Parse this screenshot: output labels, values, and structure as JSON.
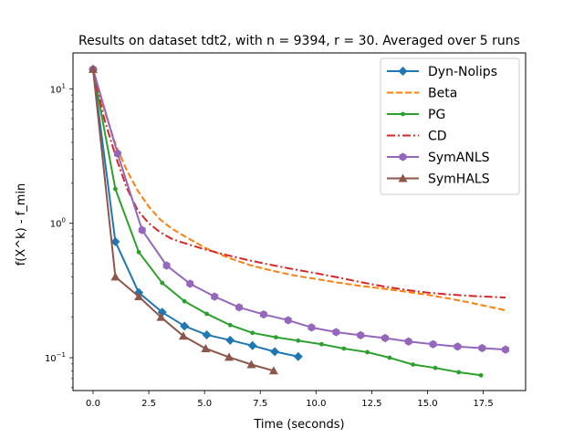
{
  "chart_data": {
    "type": "line",
    "title": "Results on dataset tdt2, with n = 9394, r = 30. Averaged over 5 runs",
    "xlabel": "Time (seconds)",
    "ylabel": "f(X^k) - f_min",
    "xlim": [
      -0.9,
      19.4
    ],
    "ylim": [
      0.057,
      18.5
    ],
    "yscale": "log",
    "grid": false,
    "legend_position": "top-right",
    "x_ticks": [
      {
        "value": 0,
        "label": "0.0"
      },
      {
        "value": 2.5,
        "label": "2.5"
      },
      {
        "value": 5,
        "label": "5.0"
      },
      {
        "value": 7.5,
        "label": "7.5"
      },
      {
        "value": 10,
        "label": "10.0"
      },
      {
        "value": 12.5,
        "label": "12.5"
      },
      {
        "value": 15,
        "label": "15.0"
      },
      {
        "value": 17.5,
        "label": "17.5"
      }
    ],
    "y_ticks": [
      {
        "value": 0.1,
        "label": "10",
        "exp": "−1"
      },
      {
        "value": 1,
        "label": "10",
        "exp": "0"
      },
      {
        "value": 10,
        "label": "10",
        "exp": "1"
      }
    ],
    "series": [
      {
        "name": "Dyn-Nolips",
        "color": "#1f77b4",
        "dash": "solid",
        "marker": "diamond",
        "x": [
          0,
          1.0,
          2.05,
          3.1,
          4.1,
          5.1,
          6.15,
          7.15,
          8.15,
          9.2
        ],
        "y": [
          14.0,
          0.73,
          0.305,
          0.218,
          0.172,
          0.148,
          0.135,
          0.123,
          0.111,
          0.102
        ]
      },
      {
        "name": "Beta",
        "color": "#ff7f0e",
        "dash": "dashed",
        "marker": "none",
        "x": [
          0,
          0.5,
          1.0,
          1.5,
          2.0,
          2.5,
          3.0,
          3.5,
          4.0,
          5.0,
          6.0,
          7.0,
          8.0,
          9.0,
          10.0,
          11.0,
          12.0,
          13.0,
          14.0,
          15.0,
          16.0,
          17.0,
          18.0,
          18.5
        ],
        "y": [
          14.0,
          7.0,
          3.9,
          2.5,
          1.75,
          1.33,
          1.07,
          0.92,
          0.82,
          0.66,
          0.56,
          0.49,
          0.445,
          0.41,
          0.385,
          0.362,
          0.342,
          0.327,
          0.31,
          0.294,
          0.275,
          0.255,
          0.235,
          0.225
        ]
      },
      {
        "name": "PG",
        "color": "#2ca02c",
        "dash": "solid",
        "marker": "dot",
        "x": [
          0,
          1.0,
          2.05,
          3.1,
          4.1,
          5.1,
          6.15,
          7.15,
          8.2,
          9.2,
          10.25,
          11.25,
          12.3,
          13.3,
          14.35,
          15.35,
          16.4,
          17.4
        ],
        "y": [
          14.0,
          1.8,
          0.61,
          0.36,
          0.263,
          0.212,
          0.175,
          0.153,
          0.142,
          0.134,
          0.126,
          0.117,
          0.11,
          0.1,
          0.089,
          0.084,
          0.078,
          0.074
        ]
      },
      {
        "name": "CD",
        "color": "#d62728",
        "dash": "dashdot",
        "marker": "none",
        "x": [
          0,
          0.5,
          1.0,
          1.5,
          2.0,
          2.5,
          3.0,
          3.5,
          4.0,
          5.0,
          6.0,
          7.0,
          8.0,
          9.0,
          10.0,
          11.0,
          12.0,
          13.0,
          14.0,
          15.0,
          16.0,
          17.0,
          18.0,
          18.5
        ],
        "y": [
          14.0,
          6.0,
          3.2,
          1.85,
          1.25,
          1.0,
          0.86,
          0.77,
          0.72,
          0.64,
          0.58,
          0.53,
          0.49,
          0.455,
          0.425,
          0.395,
          0.365,
          0.34,
          0.32,
          0.305,
          0.295,
          0.288,
          0.283,
          0.28
        ]
      },
      {
        "name": "SymANLS",
        "color": "#9467bd",
        "dash": "solid",
        "marker": "hexagon",
        "x": [
          0,
          1.1,
          2.2,
          3.3,
          4.35,
          5.45,
          6.55,
          7.65,
          8.75,
          9.8,
          10.9,
          12.0,
          13.1,
          14.15,
          15.25,
          16.35,
          17.45,
          18.5
        ],
        "y": [
          14.0,
          3.3,
          0.89,
          0.485,
          0.355,
          0.285,
          0.237,
          0.21,
          0.19,
          0.168,
          0.155,
          0.147,
          0.14,
          0.132,
          0.126,
          0.121,
          0.118,
          0.115
        ]
      },
      {
        "name": "SymHALS",
        "color": "#8c564b",
        "dash": "solid",
        "marker": "triangle",
        "x": [
          0,
          1.0,
          2.05,
          3.05,
          4.05,
          5.05,
          6.1,
          7.1,
          8.1
        ],
        "y": [
          14.0,
          0.4,
          0.285,
          0.2,
          0.145,
          0.117,
          0.101,
          0.089,
          0.08
        ]
      }
    ]
  }
}
